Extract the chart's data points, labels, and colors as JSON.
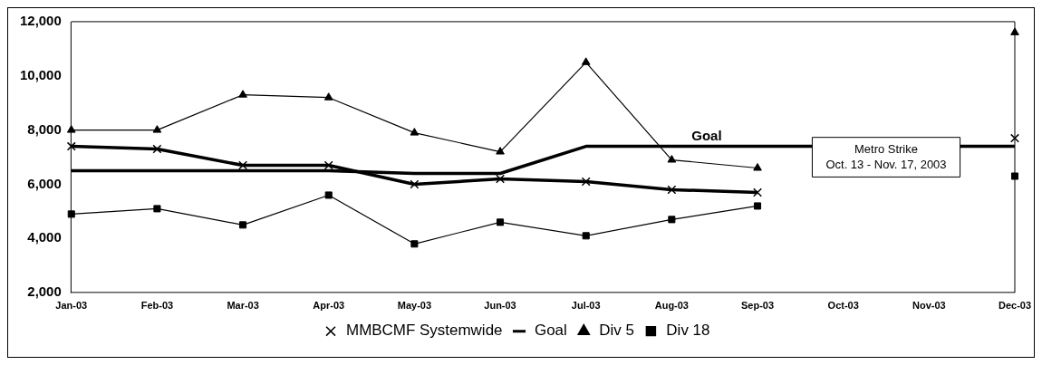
{
  "chart_data": {
    "type": "line",
    "categories": [
      "Jan-03",
      "Feb-03",
      "Mar-03",
      "Apr-03",
      "May-03",
      "Jun-03",
      "Jul-03",
      "Aug-03",
      "Sep-03",
      "Oct-03",
      "Nov-03",
      "Dec-03"
    ],
    "series": [
      {
        "name": "MMBCMF Systemwide",
        "color": "#000000",
        "marker": "cross",
        "values": [
          7400,
          7300,
          6700,
          6700,
          6000,
          6200,
          6100,
          5800,
          5700,
          null,
          null,
          7700
        ]
      },
      {
        "name": "Goal",
        "color": "#000000",
        "marker": "none",
        "values": [
          6500,
          6500,
          6500,
          6500,
          6400,
          6400,
          7400,
          7400,
          7400,
          null,
          null,
          7400
        ]
      },
      {
        "name": "Div 5",
        "color": "#000000",
        "marker": "triangle",
        "values": [
          8000,
          8000,
          9300,
          9200,
          7900,
          7200,
          10500,
          6900,
          6600,
          null,
          null,
          11600
        ]
      },
      {
        "name": "Div 18",
        "color": "#000000",
        "marker": "square",
        "values": [
          4900,
          5100,
          4500,
          5600,
          3800,
          4600,
          4100,
          4700,
          5200,
          null,
          null,
          6300
        ]
      }
    ],
    "ylim": [
      2000,
      12000
    ],
    "yticks": [
      {
        "value": 2000,
        "label": "2,000"
      },
      {
        "value": 4000,
        "label": "4,000"
      },
      {
        "value": 6000,
        "label": "6,000"
      },
      {
        "value": 8000,
        "label": "8,000"
      },
      {
        "value": 10000,
        "label": "10,000"
      },
      {
        "value": 12000,
        "label": "12,000"
      }
    ],
    "grid": false,
    "legend": "bottom",
    "annotations": [
      {
        "text": "Goal",
        "x": "Aug-03",
        "y": 7400
      },
      "Metro Strike\nOct. 13 - Nov. 17, 2003"
    ]
  }
}
